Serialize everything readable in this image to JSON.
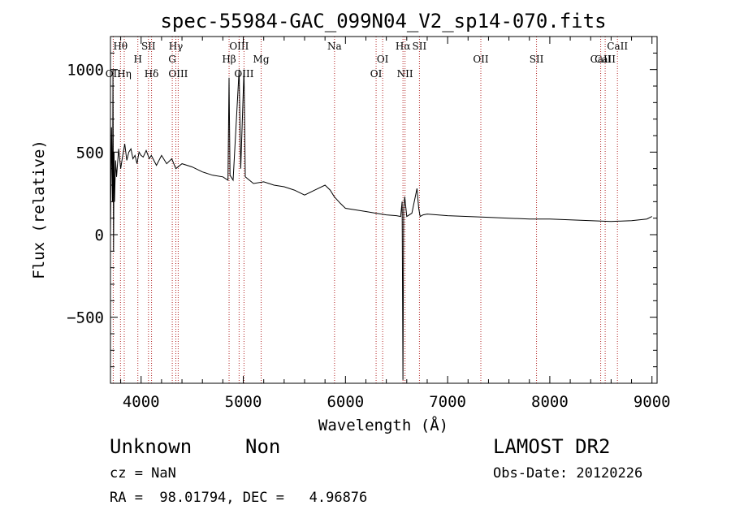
{
  "chart_data": {
    "type": "line",
    "title": "spec-55984-GAC_099N04_V2_sp14-070.fits",
    "xlabel": "Wavelength (Å)",
    "ylabel": "Flux (relative)",
    "xlim": [
      3700,
      9050
    ],
    "ylim": [
      -900,
      1200
    ],
    "xticks": [
      4000,
      5000,
      6000,
      7000,
      8000,
      9000
    ],
    "xtick_labels": [
      "4000",
      "5000",
      "6000",
      "7000",
      "8000",
      "9000"
    ],
    "yticks": [
      -500,
      0,
      500,
      1000
    ],
    "ytick_labels": [
      "−500",
      "0",
      "500",
      "1000"
    ],
    "grid": false,
    "series": [
      {
        "x": [
          3700,
          3710,
          3720,
          3725,
          3730,
          3735,
          3740,
          3750,
          3760,
          3780,
          3800,
          3820,
          3840,
          3860,
          3880,
          3900,
          3920,
          3940,
          3960,
          3980,
          4000,
          4020,
          4050,
          4080,
          4100,
          4150,
          4200,
          4250,
          4300,
          4340,
          4400,
          4500,
          4600,
          4700,
          4800,
          4850,
          4861,
          4870,
          4900,
          4959,
          4975,
          5007,
          5020,
          5100,
          5200,
          5300,
          5400,
          5500,
          5600,
          5700,
          5800,
          5850,
          5890,
          5950,
          6000,
          6100,
          6200,
          6300,
          6400,
          6500,
          6540,
          6555,
          6563,
          6570,
          6580,
          6600,
          6650,
          6700,
          6717,
          6731,
          6760,
          6800,
          6900,
          7000,
          7200,
          7400,
          7600,
          7800,
          8000,
          8200,
          8400,
          8600,
          8800,
          8950,
          9000
        ],
        "y": [
          10,
          650,
          200,
          1000,
          -100,
          500,
          200,
          450,
          350,
          520,
          400,
          480,
          550,
          450,
          500,
          520,
          460,
          480,
          430,
          500,
          480,
          470,
          510,
          460,
          480,
          420,
          480,
          430,
          460,
          400,
          430,
          410,
          380,
          360,
          350,
          330,
          950,
          360,
          330,
          1000,
          400,
          1000,
          350,
          310,
          320,
          300,
          290,
          270,
          240,
          270,
          300,
          270,
          230,
          190,
          160,
          150,
          140,
          130,
          120,
          115,
          110,
          200,
          -880,
          150,
          230,
          110,
          130,
          280,
          160,
          110,
          120,
          125,
          120,
          115,
          110,
          105,
          100,
          95,
          95,
          90,
          85,
          80,
          85,
          95,
          110
        ]
      }
    ],
    "lines": [
      {
        "name": "Hθ",
        "wl": 3798,
        "tier": 0
      },
      {
        "name": "OII",
        "wl": 3727,
        "tier": 3
      },
      {
        "name": "Hη",
        "wl": 3835,
        "tier": 3
      },
      {
        "name": "H",
        "wl": 3968,
        "tier": 1
      },
      {
        "name": "SII",
        "wl": 4072,
        "tier": 0
      },
      {
        "name": "Hδ",
        "wl": 4102,
        "tier": 3
      },
      {
        "name": "Hγ",
        "wl": 4340,
        "tier": 0
      },
      {
        "name": "G",
        "wl": 4305,
        "tier": 1
      },
      {
        "name": "OIII",
        "wl": 4363,
        "tier": 3
      },
      {
        "name": "Hβ",
        "wl": 4861,
        "tier": 1
      },
      {
        "name": "OIII",
        "wl": 4959,
        "tier": 0
      },
      {
        "name": "OIII",
        "wl": 5007,
        "tier": 3
      },
      {
        "name": "Mg",
        "wl": 5175,
        "tier": 1
      },
      {
        "name": "Na",
        "wl": 5893,
        "tier": 0
      },
      {
        "name": "OI",
        "wl": 6364,
        "tier": 1
      },
      {
        "name": "OI",
        "wl": 6300,
        "tier": 3
      },
      {
        "name": "Hα",
        "wl": 6563,
        "tier": 0
      },
      {
        "name": "SII",
        "wl": 6724,
        "tier": 0
      },
      {
        "name": "NII",
        "wl": 6583,
        "tier": 3
      },
      {
        "name": "OII",
        "wl": 7325,
        "tier": 1
      },
      {
        "name": "SII",
        "wl": 7870,
        "tier": 1
      },
      {
        "name": "CaII",
        "wl": 8662,
        "tier": 0
      },
      {
        "name": "CaII",
        "wl": 8542,
        "tier": 1
      },
      {
        "name": "CaII",
        "wl": 8498,
        "tier": 2
      }
    ]
  },
  "info": {
    "class_label": "Unknown",
    "subclass_label": "Non",
    "cz_text": "cz = NaN",
    "coords_text": "RA =  98.01794, DEC =   4.96876",
    "survey": "LAMOST DR2",
    "obs_date": "Obs-Date: 20120226"
  }
}
